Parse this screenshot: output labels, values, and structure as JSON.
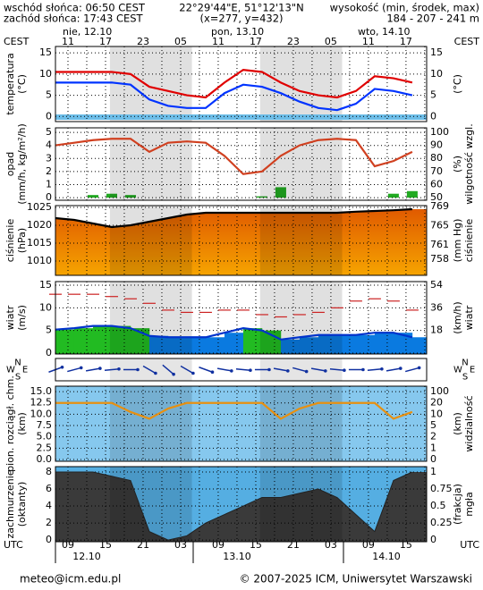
{
  "header": {
    "sunrise": "wschód słońca: 06:50 CEST",
    "sunset": "zachód słońca: 17:43 CEST",
    "coords": "22°29'44\"E, 51°12'13\"N",
    "grid": "(x=277, y=432)",
    "elev_title": "wysokość (min, środek, max)",
    "elev": "184 - 207 - 241 m"
  },
  "time": {
    "x": [
      0,
      3,
      6,
      9,
      12,
      15,
      18,
      21,
      24,
      27,
      30,
      33,
      36,
      39,
      42,
      45,
      48,
      51,
      54,
      57
    ],
    "xlim": [
      0,
      59.3
    ],
    "tz_top": "CEST",
    "tz_bottom": "UTC",
    "top_days": [
      "nie, 12.10",
      "pon, 13.10",
      "wto, 14.10"
    ],
    "bottom_days": [
      "12.10",
      "13.10",
      "14.10"
    ],
    "top_ticks": [
      {
        "value": 2,
        "label": "11"
      },
      {
        "value": 8,
        "label": "17"
      },
      {
        "value": 14,
        "label": "23"
      },
      {
        "value": 20,
        "label": "05"
      },
      {
        "value": 26,
        "label": "11"
      },
      {
        "value": 32,
        "label": "17"
      },
      {
        "value": 38,
        "label": "23"
      },
      {
        "value": 44,
        "label": "05"
      },
      {
        "value": 50,
        "label": "11"
      },
      {
        "value": 56,
        "label": "17"
      }
    ],
    "bottom_ticks": [
      {
        "value": 2,
        "label": "09"
      },
      {
        "value": 8,
        "label": "15"
      },
      {
        "value": 14,
        "label": "21"
      },
      {
        "value": 20,
        "label": "03"
      },
      {
        "value": 26,
        "label": "09"
      },
      {
        "value": 32,
        "label": "15"
      },
      {
        "value": 38,
        "label": "21"
      },
      {
        "value": 44,
        "label": "03"
      },
      {
        "value": 50,
        "label": "09"
      },
      {
        "value": 56,
        "label": "15"
      }
    ]
  },
  "chart_data": [
    {
      "type": "line",
      "left_title": [
        "temperatura",
        "(°C)"
      ],
      "right_title": [
        "(°C)"
      ],
      "background": "#ffffff",
      "ylim": [
        -1.2,
        16.5
      ],
      "yticks": [
        0,
        5,
        10,
        15
      ],
      "y2lim": [
        -1.2,
        16.5
      ],
      "y2ticks": [
        0,
        5,
        10,
        15
      ],
      "series": [
        {
          "style": "line",
          "color": "#e00000",
          "values": [
            10.5,
            10.5,
            10.5,
            10.5,
            10,
            7,
            6,
            5,
            4.5,
            8,
            11,
            10.5,
            8,
            6,
            5,
            4.5,
            6,
            9.5,
            9,
            8
          ]
        },
        {
          "style": "line",
          "color": "#0033ff",
          "values": [
            8,
            8,
            8,
            8,
            7.5,
            4,
            2.5,
            2,
            2,
            5.5,
            7.5,
            7,
            5.5,
            3.5,
            2,
            1.5,
            3,
            6.5,
            6,
            5
          ]
        }
      ]
    },
    {
      "type": "line",
      "left_title": [
        "opad",
        "(mm/h, kg/m²/h)"
      ],
      "right_title": [
        "(%)",
        "wilgotność wzgl."
      ],
      "background": "#ffffff",
      "ylim": [
        -0.2,
        5.35
      ],
      "yticks": [
        0,
        1,
        2,
        3,
        4,
        5
      ],
      "y2lim": [
        48,
        103.4
      ],
      "y2ticks": [
        50,
        60,
        70,
        80,
        90,
        100
      ],
      "series": [
        {
          "style": "bar",
          "color": "#22aa22",
          "values": [
            0,
            0,
            0.2,
            0.3,
            0.2,
            0,
            0,
            0,
            0,
            0,
            0,
            0.1,
            0.8,
            0,
            0,
            0,
            0,
            0,
            0.3,
            0.5
          ]
        },
        {
          "style": "line",
          "color": "#d04020",
          "axis": "y2",
          "values": [
            90,
            92,
            94,
            95,
            95,
            85,
            92,
            93,
            92,
            82,
            68,
            70,
            82,
            90,
            94,
            95,
            94,
            74,
            78,
            85
          ]
        }
      ]
    },
    {
      "type": "line",
      "left_title": [
        "ciśnienie",
        "(hPa)"
      ],
      "right_title": [
        "(mm Hg)",
        "ciśnienie"
      ],
      "background": "#ffffff",
      "ylim": [
        1006,
        1025.5
      ],
      "yticks": [
        1010,
        1015,
        1020,
        1025
      ],
      "y2lim": [
        754.6,
        769.2
      ],
      "y2ticks": [
        758,
        761,
        765,
        769
      ],
      "series": [
        {
          "style": "area",
          "color": "#000000",
          "fill": "#f08a00",
          "values": [
            1022,
            1021.5,
            1020.5,
            1019.5,
            1020,
            1021,
            1022,
            1023,
            1023.5,
            1023.5,
            1023.5,
            1023.5,
            1023.5,
            1023.5,
            1023.5,
            1023.5,
            1023.8,
            1024,
            1024.2,
            1024.5
          ]
        }
      ]
    },
    {
      "type": "line",
      "left_title": [
        "wiatr",
        "(m/s)"
      ],
      "right_title": [
        "(km/h)",
        "wiatr"
      ],
      "background": "#ffffff",
      "ylim": [
        -0.2,
        15.8
      ],
      "yticks": [
        0,
        5,
        10,
        15
      ],
      "y2lim": [
        -0.72,
        56.9
      ],
      "y2ticks": [
        18,
        36,
        54
      ],
      "series": [
        {
          "style": "steps",
          "color": "#0033cc",
          "fill": "#0a7ae0",
          "fill_above": "#22bb22",
          "threshold": 5,
          "values": [
            5.2,
            5.5,
            6,
            6,
            5.5,
            3.8,
            3.5,
            3.5,
            3.5,
            4.5,
            5.5,
            5,
            3,
            3.5,
            4,
            4,
            4,
            4.5,
            4.5,
            3.5
          ]
        },
        {
          "style": "dash",
          "color": "#cc2222",
          "values": [
            13,
            13,
            13,
            12.5,
            12,
            11,
            9.5,
            9,
            9,
            9.5,
            9.5,
            8.5,
            8,
            8.5,
            9,
            10,
            11.5,
            12,
            11.5,
            9.5
          ]
        }
      ]
    },
    {
      "type": "vector",
      "compass": [
        "N",
        "W",
        "E",
        "S"
      ],
      "background": "#ffffff",
      "color": "#1030a0",
      "values": [
        250,
        255,
        260,
        265,
        270,
        300,
        310,
        300,
        290,
        280,
        275,
        270,
        280,
        285,
        280,
        275,
        270,
        265,
        260,
        255
      ]
    },
    {
      "type": "line",
      "left_title": [
        "pion. rozciągł. chm.",
        "(km)"
      ],
      "right_title": [
        "(km)",
        "widzialność"
      ],
      "background": "#86c8ee",
      "ylim": [
        -0.4,
        16.2
      ],
      "yticks": [
        {
          "value": 0,
          "label": "0.0"
        },
        {
          "value": 2.5,
          "label": "2.5"
        },
        {
          "value": 5,
          "label": "5.0"
        },
        {
          "value": 7.5,
          "label": "7.5"
        },
        {
          "value": 10,
          "label": "10.0"
        },
        {
          "value": 12.5,
          "label": "12.5"
        },
        {
          "value": 15,
          "label": "15.0"
        }
      ],
      "y2scale": "ticks",
      "y2ticks": [
        0,
        1,
        2,
        5,
        10,
        20,
        100
      ],
      "series": [
        {
          "style": "line",
          "color": "#e89010",
          "axis": "y2",
          "values": [
            20,
            20,
            20,
            20,
            12,
            8,
            15,
            20,
            20,
            20,
            20,
            20,
            8,
            15,
            20,
            20,
            20,
            20,
            8,
            12
          ]
        }
      ]
    },
    {
      "type": "line",
      "left_title": [
        "zachmurzenie",
        "(oktanty)"
      ],
      "right_title": [
        "(frakcja)",
        "mgła"
      ],
      "background": "#55aee2",
      "ylim": [
        -0.2,
        8.63
      ],
      "yticks": [
        0,
        2,
        4,
        6,
        8
      ],
      "y2lim": [
        -0.025,
        1.079
      ],
      "y2ticks": [
        0,
        0.25,
        0.5,
        0.75,
        1
      ],
      "series": [
        {
          "style": "area",
          "color": "#222222",
          "fill": "#3a3a3a",
          "values": [
            8,
            8,
            8,
            7.5,
            7,
            1,
            0,
            0.5,
            2,
            3,
            4,
            5,
            5,
            5.5,
            6,
            5,
            3,
            1,
            7,
            8
          ]
        }
      ]
    }
  ],
  "footer": {
    "left": "meteo@icm.edu.pl",
    "right": "© 2007-2025 ICM, Uniwersytet Warszawski"
  }
}
